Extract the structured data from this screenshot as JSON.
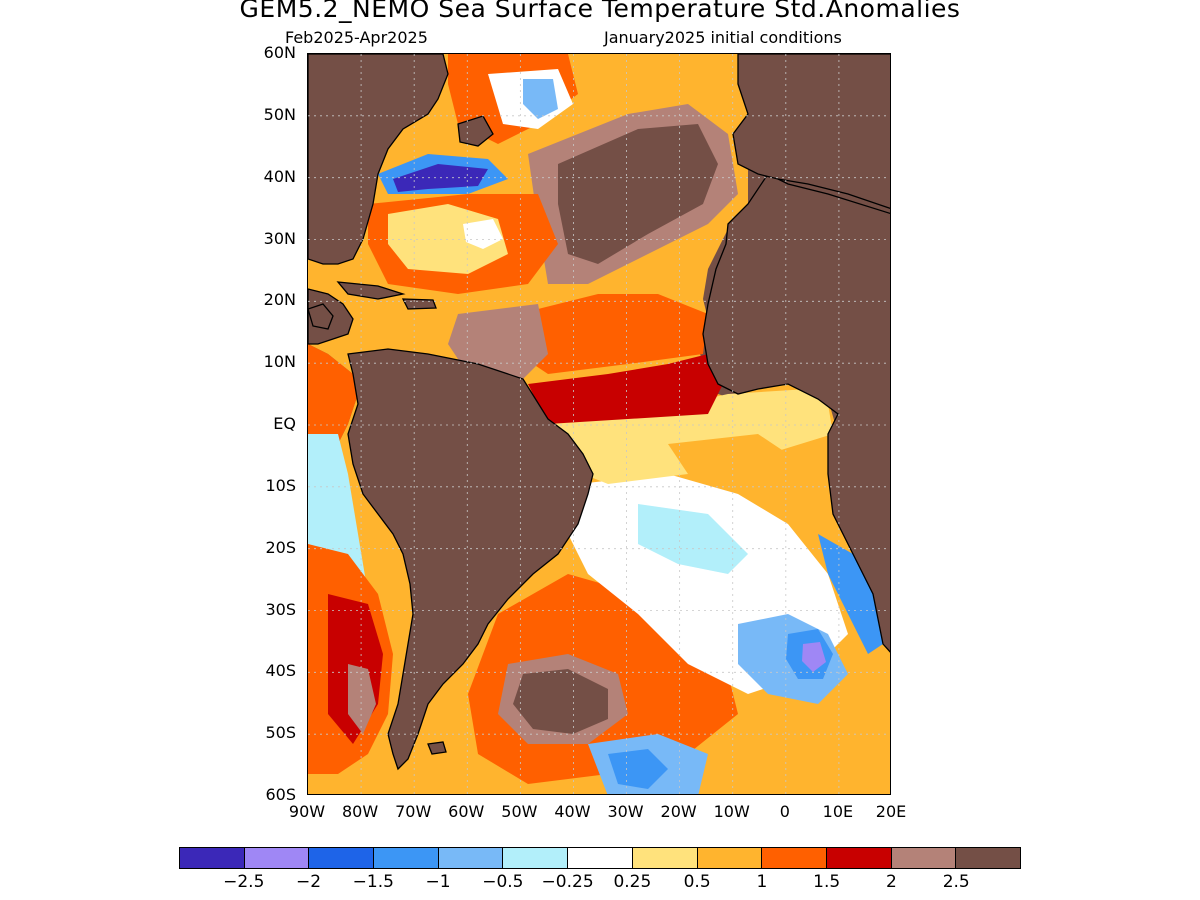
{
  "header": {
    "title": "GEM5.2_NEMO Sea Surface Temperature Std.Anomalies",
    "period": "Feb2025-Apr2025",
    "initial_conditions": "January2025 initial conditions"
  },
  "map": {
    "region": "Atlantic Ocean",
    "land_color": "#744f46",
    "coastline_color": "#000000",
    "grid_style": "dotted",
    "lat_labels": [
      "60N",
      "50N",
      "40N",
      "30N",
      "20N",
      "10N",
      "EQ",
      "10S",
      "20S",
      "30S",
      "40S",
      "50S",
      "60S"
    ],
    "lon_labels": [
      "90W",
      "80W",
      "70W",
      "60W",
      "50W",
      "40W",
      "30W",
      "20W",
      "10W",
      "0",
      "10E",
      "20E"
    ]
  },
  "colorbar": {
    "colors": [
      "#3b28b8",
      "#9f87f5",
      "#1e64e8",
      "#3c96f5",
      "#78b9f7",
      "#b2effa",
      "#ffffff",
      "#ffe27c",
      "#ffb42e",
      "#ff6000",
      "#c80000",
      "#b48278",
      "#744f46"
    ],
    "labels": [
      "−2.5",
      "−2",
      "−1.5",
      "−1",
      "−0.5",
      "−0.25",
      "0.25",
      "0.5",
      "1",
      "1.5",
      "2",
      "2.5"
    ]
  }
}
